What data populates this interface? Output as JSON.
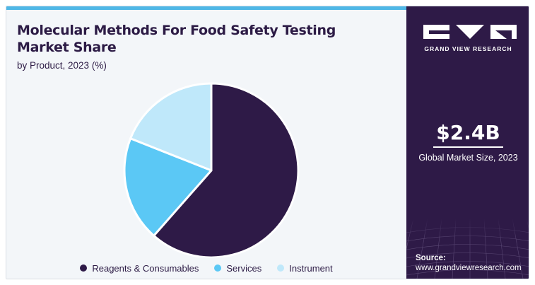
{
  "header": {
    "title": "Molecular Methods For Food Safety Testing Market Share",
    "subtitle": "by Product, 2023 (%)"
  },
  "sidebar": {
    "brand": "GRAND VIEW RESEARCH",
    "market_value": "$2.4B",
    "market_value_label": "Global Market Size, 2023",
    "source_label": "Source:",
    "source_url": "www.grandviewresearch.com"
  },
  "colors": {
    "reagents": "#2e1a47",
    "services": "#5bc8f5",
    "instrument": "#bfe8fa",
    "sidebar_bg": "#2e1a47",
    "accent": "#4fb7e6"
  },
  "chart_data": {
    "type": "pie",
    "title": "Molecular Methods For Food Safety Testing Market Share",
    "subtitle": "by Product, 2023 (%)",
    "legend_position": "bottom",
    "categories": [
      "Reagents & Consumables",
      "Services",
      "Instrument"
    ],
    "values": [
      61.5,
      19.5,
      19.0
    ],
    "start_angle_deg": 0,
    "direction": "clockwise"
  }
}
